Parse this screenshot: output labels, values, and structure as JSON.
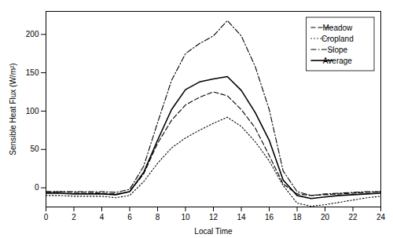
{
  "chart_data": {
    "type": "line",
    "xlabel": "Local Time",
    "ylabel": "Sensible Heat Flux (W/m²)",
    "x": [
      0,
      1,
      2,
      3,
      4,
      5,
      6,
      7,
      8,
      9,
      10,
      11,
      12,
      13,
      14,
      15,
      16,
      17,
      18,
      19,
      20,
      21,
      22,
      23,
      24
    ],
    "series": [
      {
        "name": "Meadow",
        "color": "#000000",
        "line_style": "dashed",
        "values": [
          -5,
          -5,
          -6,
          -6,
          -7,
          -8,
          -5,
          18,
          58,
          88,
          108,
          118,
          125,
          120,
          102,
          78,
          42,
          5,
          -8,
          -10,
          -9,
          -8,
          -7,
          -6,
          -5
        ]
      },
      {
        "name": "Cropland",
        "color": "#000000",
        "line_style": "dotted",
        "values": [
          -10,
          -10,
          -11,
          -11,
          -11,
          -13,
          -10,
          8,
          32,
          52,
          65,
          75,
          84,
          92,
          80,
          60,
          35,
          3,
          -20,
          -24,
          -22,
          -19,
          -16,
          -13,
          -11
        ]
      },
      {
        "name": "Slope",
        "color": "#000000",
        "line_style": "dashdot",
        "values": [
          -5,
          -5,
          -5,
          -5,
          -5,
          -6,
          -2,
          28,
          85,
          140,
          175,
          188,
          198,
          218,
          198,
          158,
          102,
          22,
          -5,
          -10,
          -8,
          -7,
          -6,
          -5,
          -5
        ]
      },
      {
        "name": "Average",
        "color": "#000000",
        "line_style": "solid",
        "values": [
          -7,
          -7,
          -8,
          -8,
          -8,
          -9,
          -5,
          20,
          62,
          102,
          128,
          138,
          142,
          145,
          127,
          98,
          62,
          10,
          -10,
          -14,
          -12,
          -10,
          -9,
          -8,
          -7
        ]
      }
    ],
    "xlim": [
      0,
      24
    ],
    "ylim": [
      -25,
      230
    ],
    "xticks": [
      0,
      2,
      4,
      6,
      8,
      10,
      12,
      14,
      16,
      18,
      20,
      22,
      24
    ],
    "yticks": [
      0,
      50,
      100,
      150,
      200
    ],
    "grid": false,
    "legend": "upper right"
  }
}
